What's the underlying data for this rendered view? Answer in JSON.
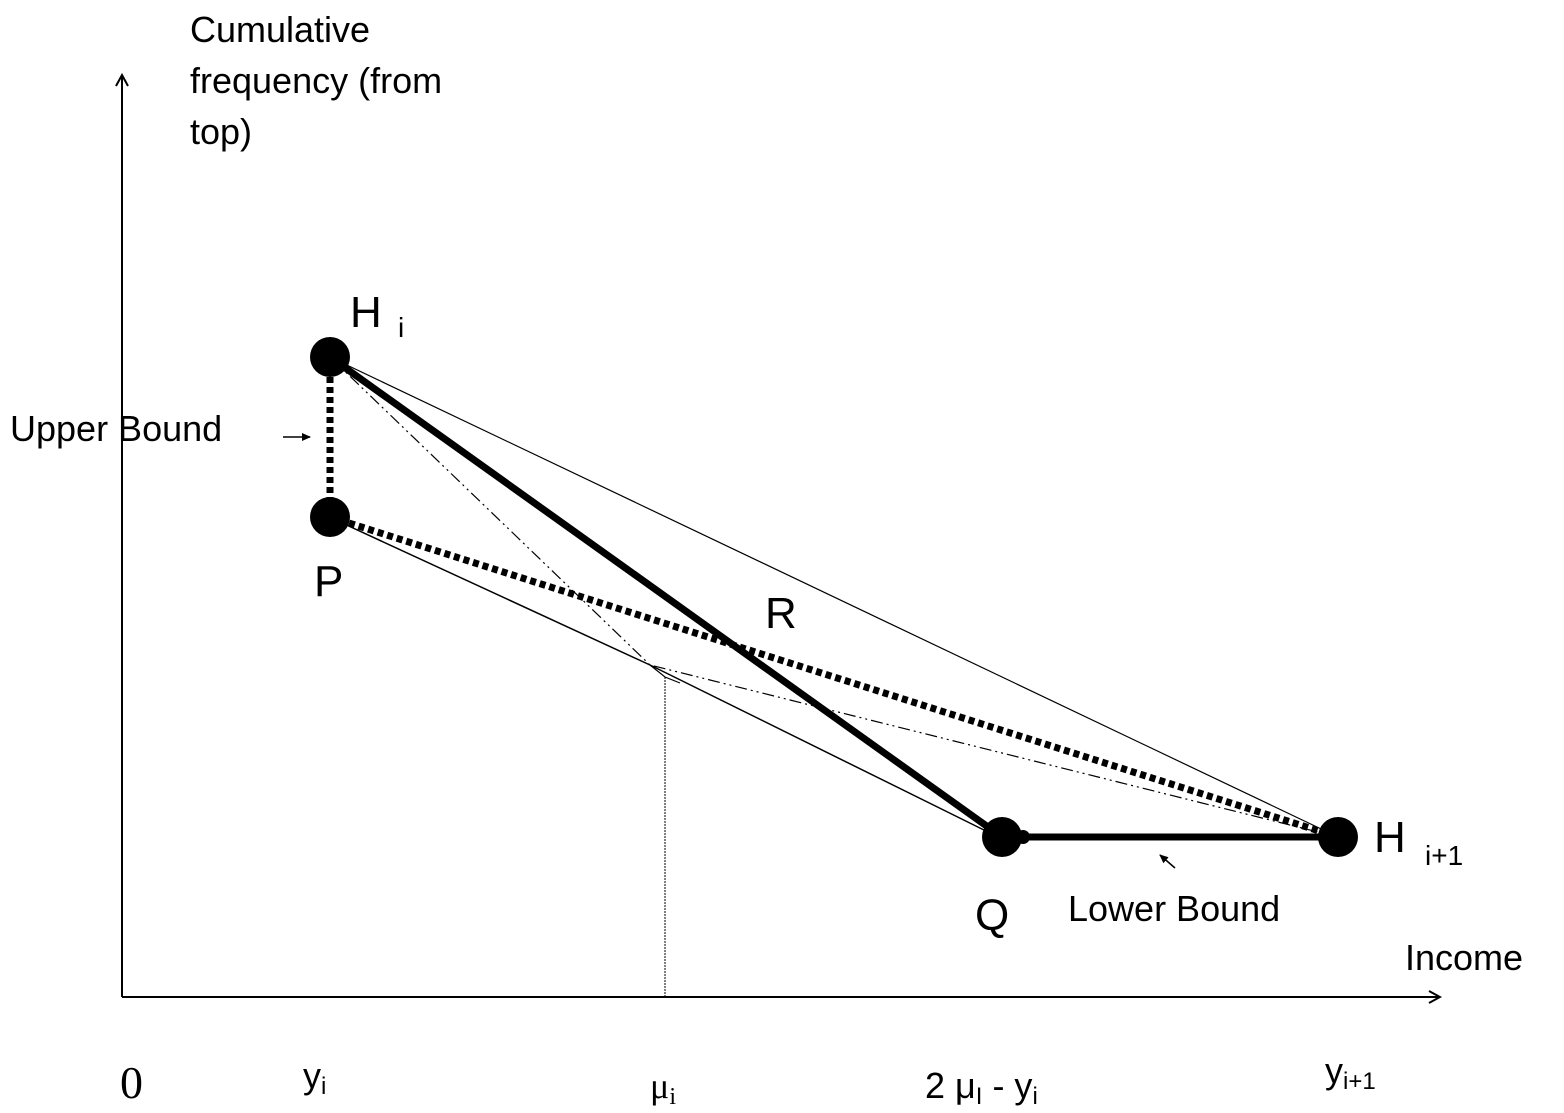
{
  "axes": {
    "y_label": [
      "Cumulative",
      "frequency (from",
      "top)"
    ],
    "x_label": "Income",
    "origin": "0"
  },
  "points": {
    "h_i": {
      "label": "H",
      "sub": "i"
    },
    "p": {
      "label": "P"
    },
    "r": {
      "label": "R"
    },
    "q": {
      "label": "Q"
    },
    "h_i1": {
      "label": "H",
      "sub": "i+1"
    }
  },
  "annotations": {
    "upper_bound": "Upper Bound",
    "lower_bound": "Lower Bound"
  },
  "x_ticks": [
    {
      "label": "y",
      "sub": "i"
    },
    {
      "label": "μ",
      "sub": "i"
    },
    {
      "label": "2 μ",
      "sub": "I",
      "label2": " - y",
      "sub2": "i"
    },
    {
      "label": "y",
      "sub": "i+1"
    }
  ]
}
